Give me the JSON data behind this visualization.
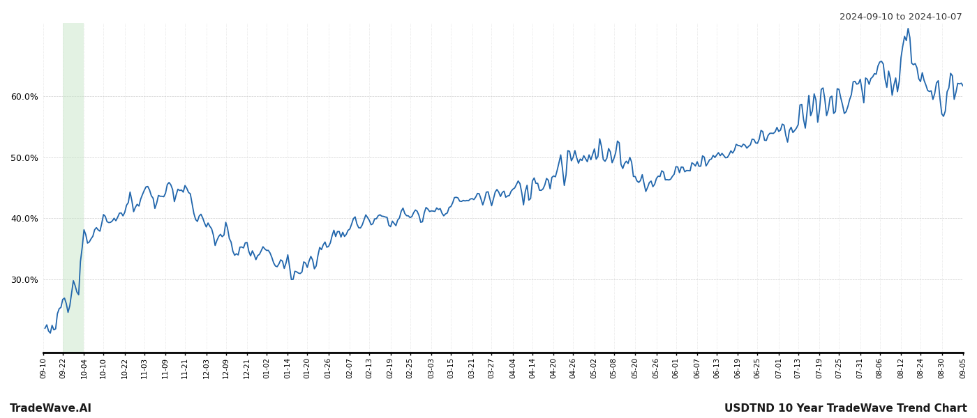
{
  "title_top_right": "2024-09-10 to 2024-10-07",
  "footer_left": "TradeWave.AI",
  "footer_right": "USDTND 10 Year TradeWave Trend Chart",
  "line_color": "#2166ac",
  "line_width": 1.3,
  "shaded_color": "#c8e6c9",
  "shaded_alpha": 0.5,
  "background_color": "#ffffff",
  "grid_color": "#bbbbbb",
  "ylim_min": 18.0,
  "ylim_max": 72.0,
  "yticks": [
    30.0,
    40.0,
    50.0,
    60.0
  ],
  "x_labels": [
    "09-10",
    "09-22",
    "10-04",
    "10-10",
    "10-22",
    "11-03",
    "11-09",
    "11-21",
    "12-03",
    "12-09",
    "12-21",
    "01-02",
    "01-14",
    "01-20",
    "01-26",
    "02-07",
    "02-13",
    "02-19",
    "02-25",
    "03-03",
    "03-15",
    "03-21",
    "03-27",
    "04-04",
    "04-14",
    "04-20",
    "04-26",
    "05-02",
    "05-08",
    "05-20",
    "05-26",
    "06-01",
    "06-07",
    "06-13",
    "06-19",
    "06-25",
    "07-01",
    "07-13",
    "07-19",
    "07-25",
    "07-31",
    "08-06",
    "08-12",
    "08-24",
    "08-30",
    "09-05"
  ],
  "shaded_label_start": "09-22",
  "shaded_label_end": "10-04",
  "n_points": 520
}
